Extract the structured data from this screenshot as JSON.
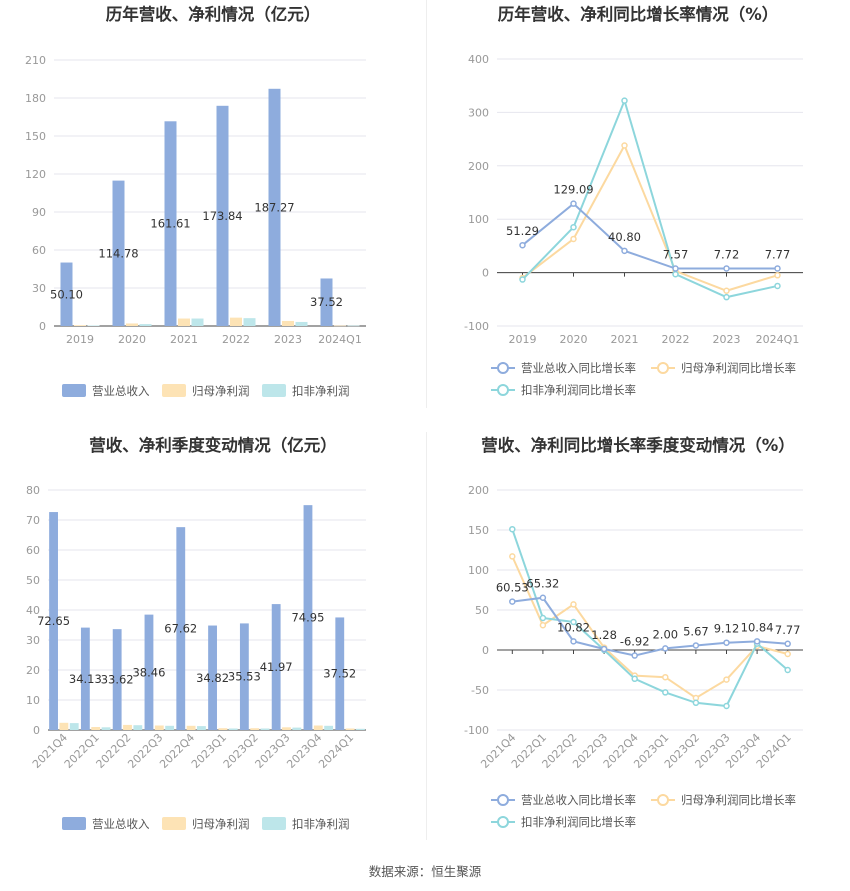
{
  "source_text": "数据来源：恒生聚源",
  "chart_data": [
    {
      "id": "annual_revenue_profit",
      "type": "bar",
      "title": "历年营收、净利情况（亿元）",
      "categories": [
        "2019",
        "2020",
        "2021",
        "2022",
        "2023",
        "2024Q1"
      ],
      "yticks": [
        0,
        30,
        60,
        90,
        120,
        150,
        180,
        210
      ],
      "ylim": [
        0,
        210
      ],
      "series": [
        {
          "name": "营业总收入",
          "color": "#8eacdd",
          "values": [
            50.1,
            114.78,
            161.61,
            173.84,
            187.27,
            37.52
          ],
          "labels": [
            "50.10",
            "114.78",
            "161.61",
            "173.84",
            "187.27",
            "37.52"
          ]
        },
        {
          "name": "归母净利润",
          "color": "#fde3b5",
          "values": [
            0.6,
            2.0,
            5.9,
            6.6,
            4.0,
            0.3
          ]
        },
        {
          "name": "扣非净利润",
          "color": "#bde6ea",
          "values": [
            0.4,
            1.5,
            5.9,
            6.2,
            3.2,
            0.3
          ]
        }
      ],
      "legend_position": "bottom"
    },
    {
      "id": "annual_growth",
      "type": "line",
      "title": "历年营收、净利同比增长率情况（%）",
      "categories": [
        "2019",
        "2020",
        "2021",
        "2022",
        "2023",
        "2024Q1"
      ],
      "yticks": [
        -100,
        0,
        100,
        200,
        300,
        400
      ],
      "ylim": [
        -100,
        400
      ],
      "series": [
        {
          "name": "营业总收入同比增长率",
          "color": "#8eacdd",
          "values": [
            51.29,
            129.09,
            40.8,
            7.57,
            7.72,
            7.77
          ],
          "labels": [
            "51.29",
            "129.09",
            "40.80",
            "7.57",
            "7.72",
            "7.77"
          ]
        },
        {
          "name": "归母净利润同比增长率",
          "color": "#fcd9a0",
          "values": [
            -10,
            63,
            238,
            3,
            -34,
            -5
          ]
        },
        {
          "name": "扣非净利润同比增长率",
          "color": "#8dd6dc",
          "values": [
            -13,
            85,
            322,
            -3,
            -46,
            -25
          ]
        }
      ],
      "legend_position": "bottom"
    },
    {
      "id": "quarterly_revenue_profit",
      "type": "bar",
      "title": "营收、净利季度变动情况（亿元）",
      "categories": [
        "2021Q4",
        "2022Q1",
        "2022Q2",
        "2022Q3",
        "2022Q4",
        "2023Q1",
        "2023Q2",
        "2023Q3",
        "2023Q4",
        "2024Q1"
      ],
      "yticks": [
        0,
        10,
        20,
        30,
        40,
        50,
        60,
        70,
        80
      ],
      "ylim": [
        0,
        80
      ],
      "series": [
        {
          "name": "营业总收入",
          "color": "#8eacdd",
          "values": [
            72.65,
            34.13,
            33.62,
            38.46,
            67.62,
            34.82,
            35.53,
            41.97,
            74.95,
            37.52
          ],
          "labels": [
            "72.65",
            "34.13",
            "33.62",
            "38.46",
            "67.62",
            "34.82",
            "35.53",
            "41.97",
            "74.95",
            "37.52"
          ]
        },
        {
          "name": "归母净利润",
          "color": "#fde3b5",
          "values": [
            2.4,
            1.0,
            1.7,
            1.5,
            1.4,
            0.6,
            0.6,
            0.9,
            1.5,
            0.5
          ]
        },
        {
          "name": "扣非净利润",
          "color": "#bde6ea",
          "values": [
            2.3,
            0.9,
            1.6,
            1.4,
            1.3,
            0.5,
            0.5,
            0.8,
            1.4,
            0.4
          ]
        }
      ],
      "legend_position": "bottom"
    },
    {
      "id": "quarterly_growth",
      "type": "line",
      "title": "营收、净利同比增长率季度变动情况（%）",
      "categories": [
        "2021Q4",
        "2022Q1",
        "2022Q2",
        "2022Q3",
        "2022Q4",
        "2023Q1",
        "2023Q2",
        "2023Q3",
        "2023Q4",
        "2024Q1"
      ],
      "yticks": [
        -100,
        -50,
        0,
        50,
        100,
        150,
        200
      ],
      "ylim": [
        -100,
        200
      ],
      "series": [
        {
          "name": "营业总收入同比增长率",
          "color": "#8eacdd",
          "values": [
            60.53,
            65.32,
            10.82,
            1.28,
            -6.92,
            2.0,
            5.67,
            9.12,
            10.84,
            7.77
          ],
          "labels": [
            "60.53",
            "65.32",
            "10.82",
            "1.28",
            "-6.92",
            "2.00",
            "5.67",
            "9.12",
            "10.84",
            "7.77"
          ]
        },
        {
          "name": "归母净利润同比增长率",
          "color": "#fcd9a0",
          "values": [
            117,
            31,
            57,
            3,
            -32,
            -34,
            -60,
            -37,
            5,
            -5
          ]
        },
        {
          "name": "扣非净利润同比增长率",
          "color": "#8dd6dc",
          "values": [
            151,
            40,
            35,
            0,
            -36,
            -53,
            -66,
            -70,
            8,
            -25
          ]
        }
      ],
      "legend_position": "bottom"
    }
  ]
}
